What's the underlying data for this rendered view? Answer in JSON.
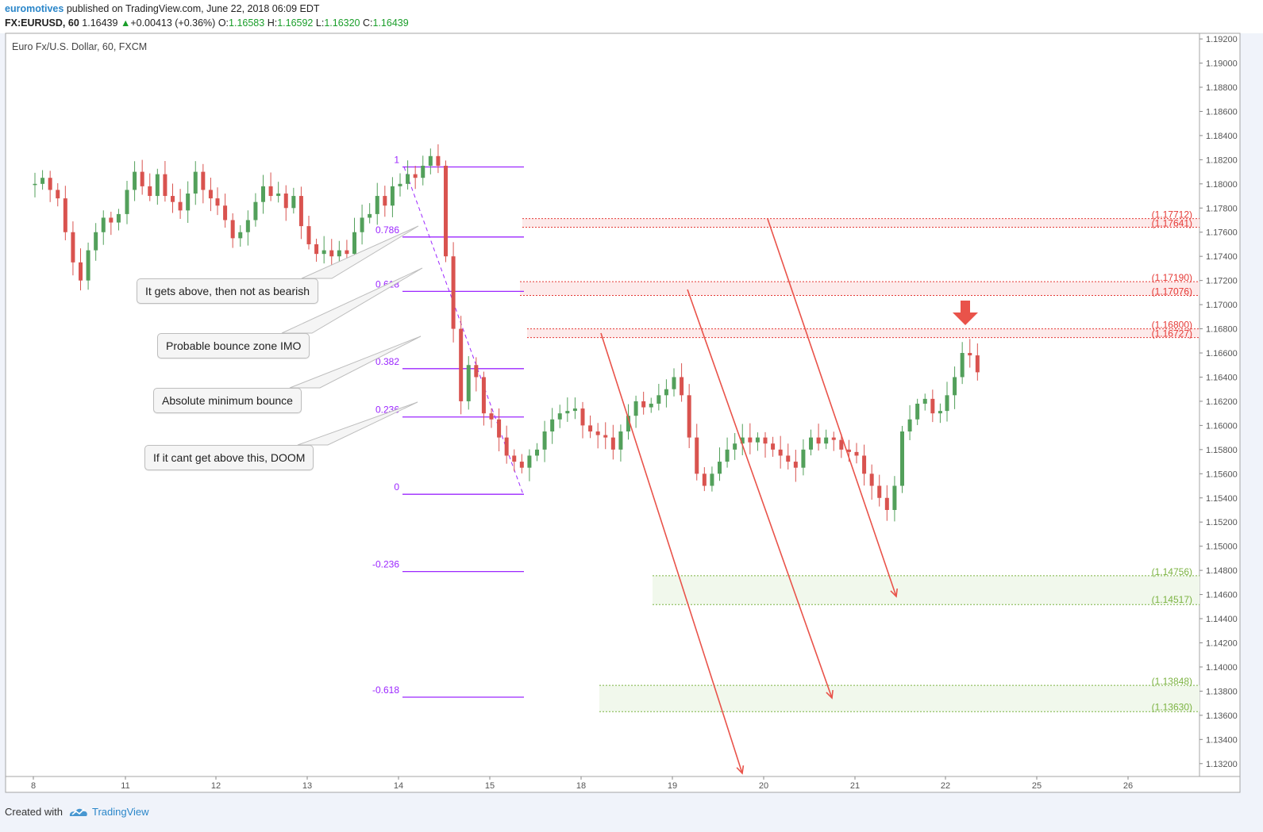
{
  "header": {
    "author": "euromotives",
    "published": "published on TradingView.com, June 22, 2018 06:09 EDT",
    "symbol": "FX:EURUSD, 60",
    "last": "1.16439",
    "change": "+0.00413 (+0.36%)",
    "o_label": "O:",
    "o": "1.16583",
    "h_label": "H:",
    "h": "1.16592",
    "l_label": "L:",
    "l": "1.16320",
    "c_label": "C:",
    "c": "1.16439"
  },
  "colors": {
    "up": "#53a05b",
    "down": "#d9534f",
    "fib": "#9c27ff",
    "resistance": "#e53935",
    "support": "#7cb342",
    "arrow": "#e9534a"
  },
  "footer": {
    "created": "Created with",
    "brand": "TradingView"
  },
  "notes": [
    "It gets above, then not as bearish",
    "Probable bounce zone IMO",
    "Absolute minimum bounce",
    "If it cant get above this, DOOM"
  ],
  "chart_data": {
    "type": "candlestick",
    "title": "Euro Fx/U.S. Dollar, 60, FXCM",
    "ylim": [
      1.131,
      1.1924
    ],
    "y_ticks": [
      "1.19200",
      "1.19000",
      "1.18800",
      "1.18600",
      "1.18400",
      "1.18200",
      "1.18000",
      "1.17800",
      "1.17600",
      "1.17400",
      "1.17200",
      "1.17000",
      "1.16800",
      "1.16600",
      "1.16400",
      "1.16200",
      "1.16000",
      "1.15800",
      "1.15600",
      "1.15400",
      "1.15200",
      "1.15000",
      "1.14800",
      "1.14600",
      "1.14400",
      "1.14200",
      "1.14000",
      "1.13800",
      "1.13600",
      "1.13400",
      "1.13200"
    ],
    "x_ticks": [
      "8",
      "11",
      "12",
      "13",
      "14",
      "15",
      "18",
      "19",
      "20",
      "21",
      "22",
      "25",
      "26"
    ],
    "grid": false,
    "fib_levels": [
      {
        "label": "1",
        "price": 1.1814
      },
      {
        "label": "0.786",
        "price": 1.1756
      },
      {
        "label": "0.618",
        "price": 1.1711
      },
      {
        "label": "0.382",
        "price": 1.1647
      },
      {
        "label": "0.236",
        "price": 1.1607
      },
      {
        "label": "0",
        "price": 1.1543
      },
      {
        "label": "-0.236",
        "price": 1.1479
      },
      {
        "label": "-0.618",
        "price": 1.1375
      }
    ],
    "resistance_zones": [
      {
        "top": "1.17712",
        "bottom": "1.17641"
      },
      {
        "top": "1.17190",
        "bottom": "1.17076"
      },
      {
        "top": "1.16800",
        "bottom": "1.16727"
      }
    ],
    "support_zones": [
      {
        "top": "1.14756",
        "bottom": "1.14517"
      },
      {
        "top": "1.13848",
        "bottom": "1.13630"
      }
    ],
    "price_path": [
      [
        "8",
        1.18
      ],
      [
        "8",
        1.1805
      ],
      [
        "8",
        1.1795
      ],
      [
        "8",
        1.1788
      ],
      [
        "8",
        1.176
      ],
      [
        "8",
        1.1735
      ],
      [
        "8",
        1.172
      ],
      [
        "8",
        1.1745
      ],
      [
        "8",
        1.176
      ],
      [
        "8",
        1.1772
      ],
      [
        "8",
        1.1768
      ],
      [
        "8",
        1.1775
      ],
      [
        "11",
        1.1795
      ],
      [
        "11",
        1.181
      ],
      [
        "11",
        1.1798
      ],
      [
        "11",
        1.179
      ],
      [
        "11",
        1.1808
      ],
      [
        "11",
        1.179
      ],
      [
        "11",
        1.1785
      ],
      [
        "11",
        1.1778
      ],
      [
        "11",
        1.1792
      ],
      [
        "11",
        1.181
      ],
      [
        "11",
        1.1795
      ],
      [
        "11",
        1.1788
      ],
      [
        "12",
        1.1782
      ],
      [
        "12",
        1.177
      ],
      [
        "12",
        1.1755
      ],
      [
        "12",
        1.176
      ],
      [
        "12",
        1.177
      ],
      [
        "12",
        1.1785
      ],
      [
        "12",
        1.1798
      ],
      [
        "12",
        1.179
      ],
      [
        "12",
        1.1792
      ],
      [
        "12",
        1.178
      ],
      [
        "12",
        1.179
      ],
      [
        "12",
        1.1765
      ],
      [
        "13",
        1.175
      ],
      [
        "13",
        1.1742
      ],
      [
        "13",
        1.1745
      ],
      [
        "13",
        1.174
      ],
      [
        "13",
        1.1745
      ],
      [
        "13",
        1.1742
      ],
      [
        "13",
        1.176
      ],
      [
        "13",
        1.1772
      ],
      [
        "13",
        1.1775
      ],
      [
        "13",
        1.179
      ],
      [
        "13",
        1.1782
      ],
      [
        "13",
        1.1798
      ],
      [
        "14",
        1.18
      ],
      [
        "14",
        1.1808
      ],
      [
        "14",
        1.1805
      ],
      [
        "14",
        1.1815
      ],
      [
        "14",
        1.1823
      ],
      [
        "14",
        1.1815
      ],
      [
        "14",
        1.174
      ],
      [
        "14",
        1.168
      ],
      [
        "14",
        1.162
      ],
      [
        "14",
        1.165
      ],
      [
        "14",
        1.164
      ],
      [
        "14",
        1.161
      ],
      [
        "15",
        1.1605
      ],
      [
        "15",
        1.159
      ],
      [
        "15",
        1.1575
      ],
      [
        "15",
        1.157
      ],
      [
        "15",
        1.1565
      ],
      [
        "15",
        1.1575
      ],
      [
        "15",
        1.158
      ],
      [
        "15",
        1.1595
      ],
      [
        "15",
        1.1605
      ],
      [
        "15",
        1.161
      ],
      [
        "15",
        1.1612
      ],
      [
        "15",
        1.1614
      ],
      [
        "18",
        1.16
      ],
      [
        "18",
        1.1595
      ],
      [
        "18",
        1.1592
      ],
      [
        "18",
        1.159
      ],
      [
        "18",
        1.158
      ],
      [
        "18",
        1.1595
      ],
      [
        "18",
        1.1608
      ],
      [
        "18",
        1.162
      ],
      [
        "18",
        1.1615
      ],
      [
        "18",
        1.1618
      ],
      [
        "18",
        1.1625
      ],
      [
        "18",
        1.163
      ],
      [
        "19",
        1.164
      ],
      [
        "19",
        1.1625
      ],
      [
        "19",
        1.159
      ],
      [
        "19",
        1.156
      ],
      [
        "19",
        1.155
      ],
      [
        "19",
        1.156
      ],
      [
        "19",
        1.157
      ],
      [
        "19",
        1.158
      ],
      [
        "19",
        1.1585
      ],
      [
        "19",
        1.159
      ],
      [
        "19",
        1.1586
      ],
      [
        "19",
        1.159
      ],
      [
        "20",
        1.1585
      ],
      [
        "20",
        1.158
      ],
      [
        "20",
        1.1575
      ],
      [
        "20",
        1.157
      ],
      [
        "20",
        1.1565
      ],
      [
        "20",
        1.158
      ],
      [
        "20",
        1.159
      ],
      [
        "20",
        1.1585
      ],
      [
        "20",
        1.159
      ],
      [
        "20",
        1.1588
      ],
      [
        "20",
        1.158
      ],
      [
        "20",
        1.1578
      ],
      [
        "21",
        1.1575
      ],
      [
        "21",
        1.156
      ],
      [
        "21",
        1.155
      ],
      [
        "21",
        1.154
      ],
      [
        "21",
        1.153
      ],
      [
        "21",
        1.155
      ],
      [
        "21",
        1.1595
      ],
      [
        "21",
        1.1605
      ],
      [
        "21",
        1.1618
      ],
      [
        "21",
        1.1622
      ],
      [
        "21",
        1.161
      ],
      [
        "21",
        1.1612
      ],
      [
        "22",
        1.1625
      ],
      [
        "22",
        1.164
      ],
      [
        "22",
        1.166
      ],
      [
        "22",
        1.1658
      ],
      [
        "22",
        1.1644
      ]
    ]
  }
}
